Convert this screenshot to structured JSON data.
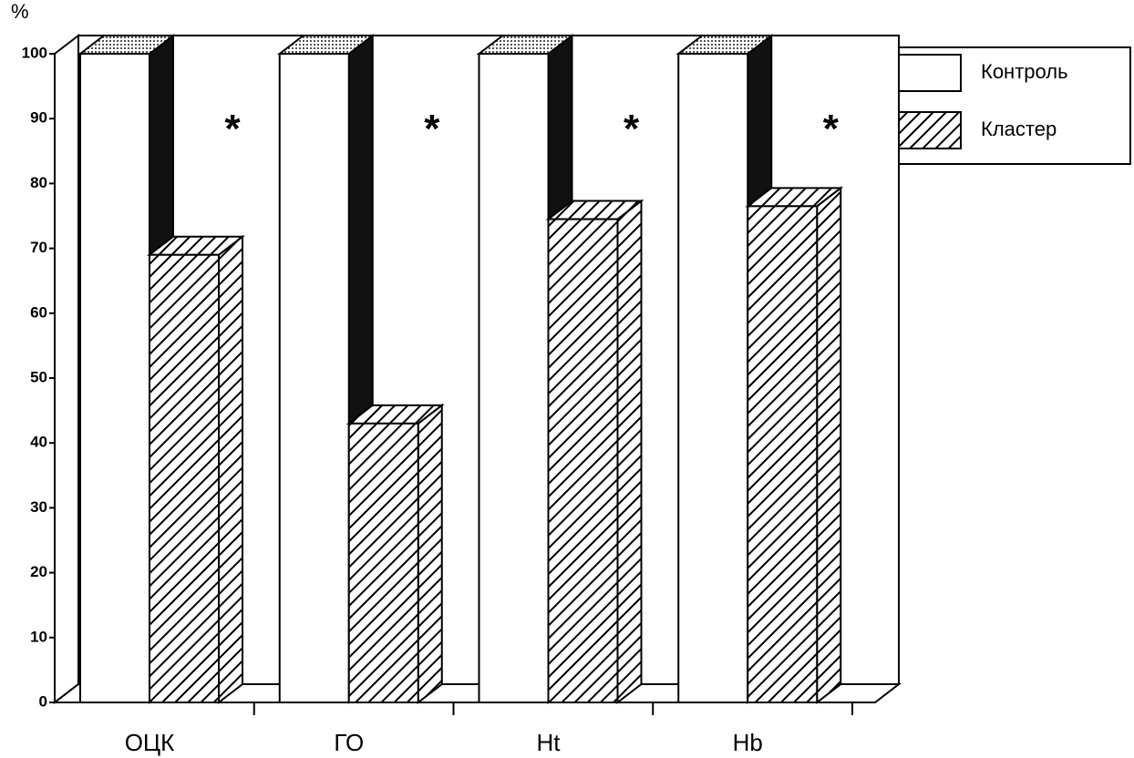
{
  "chart_data": {
    "type": "bar3d",
    "y_label": "%",
    "categories": [
      "ОЦК",
      "ГО",
      "Ht",
      "Hb"
    ],
    "series": [
      {
        "name": "Контроль",
        "color": "#ffffff",
        "values": [
          100,
          100,
          100,
          100
        ]
      },
      {
        "name": "Кластер",
        "color": "#ffffff",
        "pattern": "diagonal",
        "values": [
          69,
          43,
          74.5,
          76.5
        ]
      }
    ],
    "annotations": [
      "*",
      "*",
      "*",
      "*"
    ],
    "ylim": [
      0,
      100
    ],
    "yticks": [
      0,
      10,
      20,
      30,
      40,
      50,
      60,
      70,
      80,
      90,
      100
    ],
    "legend": "top-right"
  }
}
